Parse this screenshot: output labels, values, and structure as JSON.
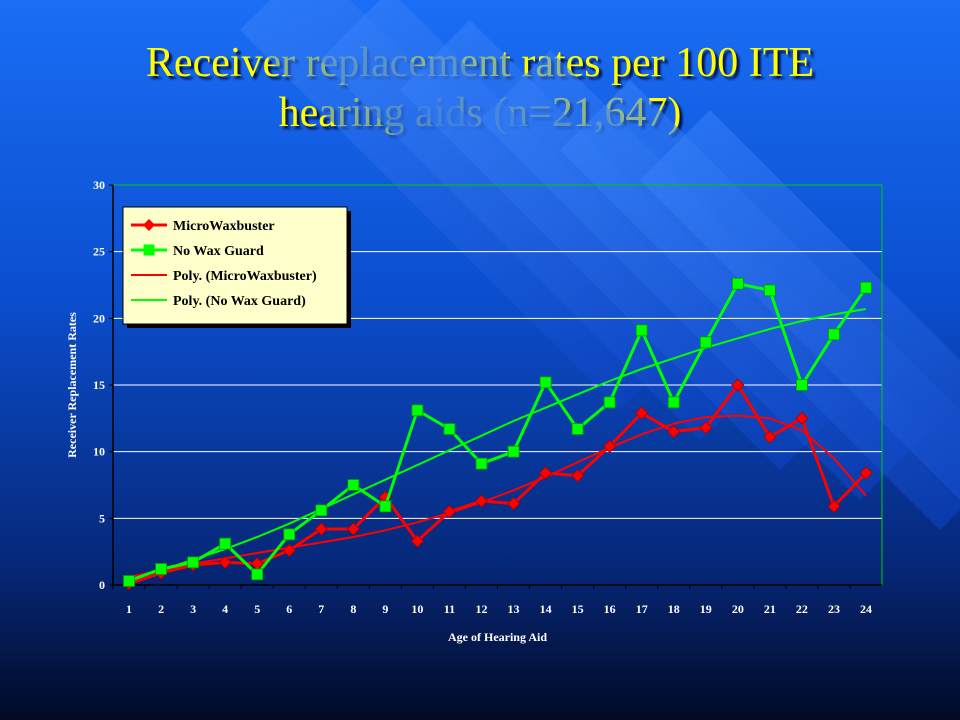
{
  "slide": {
    "title_line1": "Receiver replacement rates per 100 ITE",
    "title_line2": "hearing aids (n=21,647)"
  },
  "colors": {
    "title": "#ffff00",
    "microwaxbuster": "#ff0000",
    "no_wax_guard": "#00ff00",
    "axis": "#00cc00",
    "gridline": "#ffffff",
    "legend_bg": "#ffffcc"
  },
  "chart_data": {
    "type": "line",
    "xlabel": "Age of Hearing Aid",
    "ylabel": "Receiver Replacement Rates",
    "categories": [
      "1",
      "2",
      "3",
      "4",
      "5",
      "6",
      "7",
      "8",
      "9",
      "10",
      "11",
      "12",
      "13",
      "14",
      "15",
      "16",
      "17",
      "18",
      "19",
      "20",
      "21",
      "22",
      "23",
      "24"
    ],
    "ylim": [
      0,
      30
    ],
    "yticks": [
      0,
      5,
      10,
      15,
      20,
      25,
      30
    ],
    "grid": true,
    "legend_position": "top-left",
    "series": [
      {
        "name": "MicroWaxbuster",
        "marker": "diamond",
        "values": [
          0.1,
          0.9,
          1.5,
          1.7,
          1.6,
          2.6,
          4.2,
          4.2,
          6.6,
          3.3,
          5.5,
          6.3,
          6.1,
          8.4,
          8.2,
          10.4,
          12.9,
          11.5,
          11.8,
          15.0,
          11.1,
          12.5,
          5.9,
          8.4
        ]
      },
      {
        "name": "No Wax Guard",
        "marker": "square",
        "values": [
          0.3,
          1.2,
          1.7,
          3.1,
          0.8,
          3.8,
          5.6,
          7.5,
          5.9,
          13.1,
          11.7,
          9.1,
          10.0,
          15.2,
          11.7,
          13.7,
          19.1,
          13.7,
          18.2,
          22.6,
          22.1,
          15.0,
          18.8,
          22.3
        ]
      }
    ],
    "trendlines": [
      {
        "name": "Poly. (MicroWaxbuster)",
        "values": [
          0.6,
          1.1,
          1.6,
          2.0,
          2.4,
          2.8,
          3.2,
          3.6,
          4.1,
          4.7,
          5.4,
          6.2,
          7.1,
          8.1,
          9.2,
          10.3,
          11.3,
          12.1,
          12.6,
          12.7,
          12.5,
          11.6,
          9.5,
          6.7
        ]
      },
      {
        "name": "Poly. (No Wax Guard)",
        "values": [
          0.4,
          1.1,
          1.9,
          2.7,
          3.6,
          4.6,
          5.7,
          6.8,
          7.9,
          9.0,
          10.1,
          11.2,
          12.3,
          13.3,
          14.3,
          15.3,
          16.2,
          17.0,
          17.8,
          18.5,
          19.2,
          19.8,
          20.3,
          20.7
        ]
      }
    ]
  }
}
